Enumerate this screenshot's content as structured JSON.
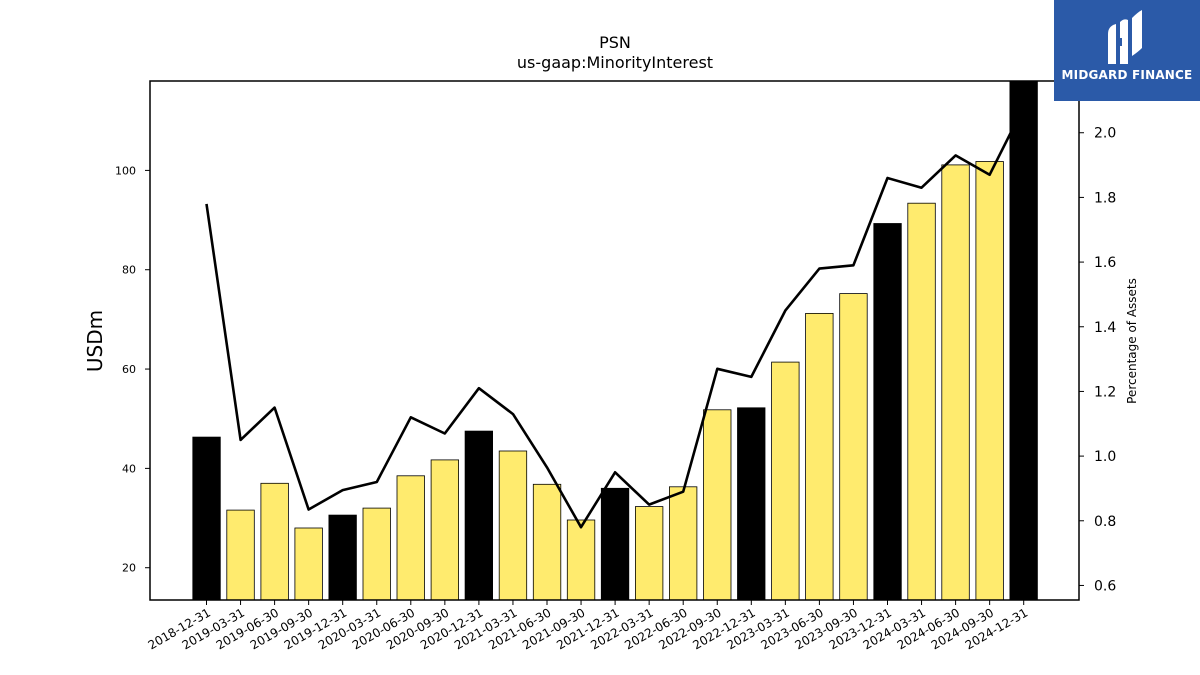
{
  "chart_data": {
    "type": "bar",
    "title": "PSN",
    "subtitle": "us-gaap:MinorityInterest",
    "ylabel": "USDm",
    "y2label": "Percentage of Assets",
    "ylim": [
      13.5,
      118
    ],
    "y2lim": [
      0.555,
      2.16
    ],
    "yticks": [
      20,
      40,
      60,
      80,
      100
    ],
    "y2ticks": [
      "0.6",
      "0.8",
      "1.0",
      "1.2",
      "1.4",
      "1.6",
      "1.8",
      "2.0"
    ],
    "categories": [
      "2018-12-31",
      "2019-03-31",
      "2019-06-30",
      "2019-09-30",
      "2019-12-31",
      "2020-03-31",
      "2020-06-30",
      "2020-09-30",
      "2020-12-31",
      "2021-03-31",
      "2021-06-30",
      "2021-09-30",
      "2021-12-31",
      "2022-03-31",
      "2022-06-30",
      "2022-09-30",
      "2022-12-31",
      "2023-03-31",
      "2023-06-30",
      "2023-09-30",
      "2023-12-31",
      "2024-03-31",
      "2024-06-30",
      "2024-09-30",
      "2024-12-31"
    ],
    "series": [
      {
        "values": [
          46.3,
          31.6,
          37.0,
          28.0,
          30.6,
          32.0,
          38.5,
          41.7,
          47.5,
          43.5,
          36.8,
          29.6,
          36.0,
          32.3,
          36.3,
          51.8,
          52.2,
          61.4,
          71.2,
          75.2,
          89.3,
          93.4,
          101.1,
          101.8,
          118.0
        ],
        "colors": [
          "#000000",
          "#ffeb6e",
          "#ffeb6e",
          "#ffeb6e",
          "#000000",
          "#ffeb6e",
          "#ffeb6e",
          "#ffeb6e",
          "#000000",
          "#ffeb6e",
          "#ffeb6e",
          "#ffeb6e",
          "#000000",
          "#ffeb6e",
          "#ffeb6e",
          "#ffeb6e",
          "#000000",
          "#ffeb6e",
          "#ffeb6e",
          "#ffeb6e",
          "#000000",
          "#ffeb6e",
          "#ffeb6e",
          "#ffeb6e",
          "#000000"
        ]
      },
      {
        "type": "line",
        "axis": "right",
        "values": [
          1.78,
          1.05,
          1.15,
          0.835,
          0.895,
          0.92,
          1.12,
          1.07,
          1.21,
          1.13,
          0.965,
          0.78,
          0.95,
          0.85,
          0.89,
          1.27,
          1.245,
          1.45,
          1.58,
          1.59,
          1.86,
          1.83,
          1.93,
          1.87,
          2.08
        ]
      }
    ],
    "legend": "none",
    "grid": false
  },
  "logo": {
    "text": "MIDGARD FINANCE",
    "color": "#2b5aa8"
  }
}
